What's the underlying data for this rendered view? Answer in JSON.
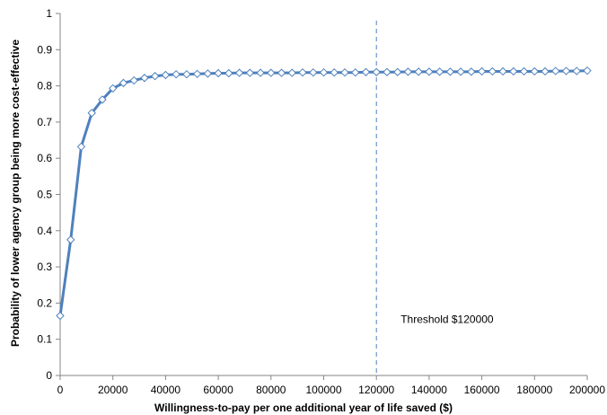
{
  "chart_data": {
    "type": "line",
    "title": "",
    "xlabel": "Willingness-to-pay  per one additional year of life saved ($)",
    "ylabel": "Probability  of lower agency group being more cost-effective",
    "xlim": [
      0,
      200000
    ],
    "ylim": [
      0,
      1
    ],
    "x_ticks": [
      "0",
      "20000",
      "40000",
      "60000",
      "80000",
      "100000",
      "120000",
      "140000",
      "160000",
      "180000",
      "200000"
    ],
    "y_ticks": [
      "0",
      "0.1",
      "0.2",
      "0.3",
      "0.4",
      "0.5",
      "0.6",
      "0.7",
      "0.8",
      "0.9",
      "1"
    ],
    "grid": false,
    "legend": "none",
    "line_color": "#4F81BD",
    "marker": "diamond",
    "marker_fill": "#ffffff",
    "threshold": {
      "x": 120000,
      "label": "Threshold $120000",
      "style": "dashed",
      "color": "#4F81BD"
    },
    "series": [
      {
        "x": [
          0,
          4000,
          8000,
          12000,
          16000,
          20000,
          24000,
          28000,
          32000,
          36000,
          40000,
          44000,
          48000,
          52000,
          56000,
          60000,
          64000,
          68000,
          72000,
          76000,
          80000,
          84000,
          88000,
          92000,
          96000,
          100000,
          104000,
          108000,
          112000,
          116000,
          120000,
          124000,
          128000,
          132000,
          136000,
          140000,
          144000,
          148000,
          152000,
          156000,
          160000,
          164000,
          168000,
          172000,
          176000,
          180000,
          184000,
          188000,
          192000,
          196000,
          200000
        ],
        "y": [
          0.165,
          0.375,
          0.632,
          0.725,
          0.762,
          0.793,
          0.808,
          0.815,
          0.822,
          0.827,
          0.83,
          0.832,
          0.832,
          0.833,
          0.834,
          0.835,
          0.835,
          0.836,
          0.836,
          0.836,
          0.836,
          0.836,
          0.836,
          0.837,
          0.837,
          0.837,
          0.837,
          0.837,
          0.837,
          0.838,
          0.838,
          0.838,
          0.838,
          0.839,
          0.839,
          0.839,
          0.839,
          0.839,
          0.839,
          0.839,
          0.84,
          0.84,
          0.84,
          0.84,
          0.84,
          0.84,
          0.84,
          0.841,
          0.841,
          0.841,
          0.842
        ]
      }
    ]
  }
}
